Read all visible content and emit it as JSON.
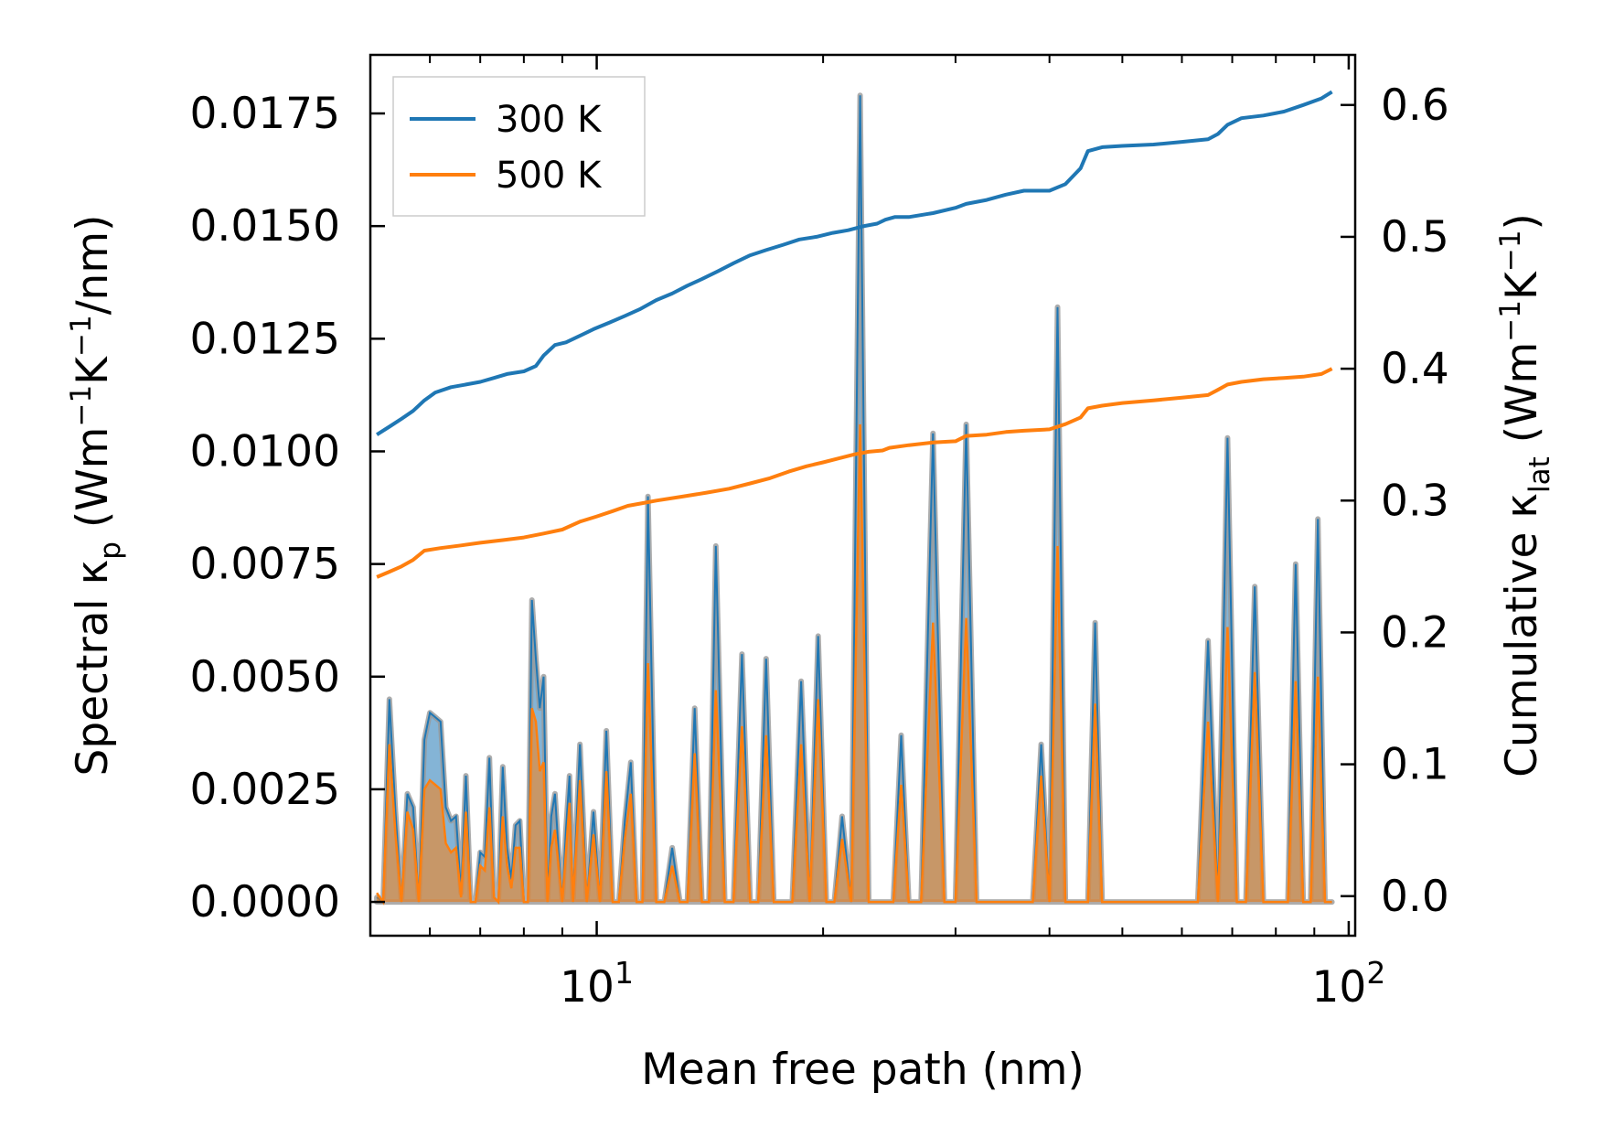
{
  "chart_data": {
    "type": "area",
    "x_scale": "log",
    "xlim": [
      5.0,
      102
    ],
    "ylim_left": [
      -0.00075,
      0.0188
    ],
    "ylim_right": [
      -0.03,
      0.638
    ],
    "xlabel": "Mean free path (nm)",
    "ylabel_left": {
      "main": "Spectral κ",
      "sub": "p",
      "unit_pre": " (Wm",
      "e1": "−1",
      "k": "K",
      "e2": "−1",
      "post": "/nm)"
    },
    "ylabel_right": {
      "main": "Cumulative κ",
      "sub": "lat",
      "unit_pre": " (Wm",
      "e1": "−1",
      "k": "K",
      "e2": "−1",
      "post": ")"
    },
    "x_ticks": [
      {
        "value": 10,
        "base": "10",
        "exp": "1"
      },
      {
        "value": 100,
        "base": "10",
        "exp": "2"
      }
    ],
    "y_ticks_left": [
      "0.0000",
      "0.0025",
      "0.0050",
      "0.0075",
      "0.0100",
      "0.0125",
      "0.0150",
      "0.0175"
    ],
    "y_ticks_right": [
      "0.0",
      "0.1",
      "0.2",
      "0.3",
      "0.4",
      "0.5",
      "0.6"
    ],
    "colors": {
      "s300": "#1f77b4",
      "s500": "#ff7f0e",
      "edge": "#999999"
    },
    "legend": {
      "placement": "top-left",
      "entries": [
        "300 K",
        "500 K"
      ]
    },
    "spectral": {
      "x": [
        5.1,
        5.2,
        5.3,
        5.4,
        5.5,
        5.6,
        5.7,
        5.8,
        5.9,
        6.0,
        6.1,
        6.2,
        6.3,
        6.4,
        6.5,
        6.6,
        6.7,
        6.8,
        6.9,
        7.0,
        7.1,
        7.2,
        7.3,
        7.4,
        7.5,
        7.6,
        7.7,
        7.8,
        7.9,
        8.0,
        8.1,
        8.2,
        8.3,
        8.4,
        8.5,
        8.6,
        8.7,
        8.8,
        8.9,
        9.0,
        9.1,
        9.2,
        9.3,
        9.5,
        9.7,
        9.9,
        10.1,
        10.3,
        10.5,
        10.7,
        10.9,
        11.1,
        11.3,
        11.5,
        11.7,
        12.0,
        12.3,
        12.6,
        12.9,
        13.2,
        13.5,
        13.8,
        14.1,
        14.4,
        14.8,
        15.2,
        15.6,
        16.0,
        16.4,
        16.8,
        17.2,
        17.7,
        18.2,
        18.7,
        19.2,
        19.7,
        20.2,
        20.7,
        21.2,
        21.8,
        22.4,
        23.0,
        23.6,
        24.2,
        24.8,
        25.4,
        26.0,
        27.0,
        28.0,
        29.0,
        30.0,
        31.0,
        32.0,
        33.0,
        34.0,
        35.0,
        36.0,
        37.0,
        38.0,
        39.0,
        40.0,
        41.0,
        42.0,
        43.0,
        44.0,
        45.0,
        46.0,
        47.0,
        48.0,
        49.0,
        50.0,
        51.0,
        53.0,
        55.0,
        57.0,
        59.0,
        61.0,
        63.0,
        65.0,
        67.0,
        69.0,
        71.0,
        73.0,
        75.0,
        77.0,
        79.0,
        81.0,
        83.0,
        85.0,
        87.0,
        89.0,
        91.0,
        93.0,
        95.0
      ],
      "k300": [
        0.0001,
        0.0,
        0.0045,
        0.002,
        0.0,
        0.0024,
        0.0021,
        0.0,
        0.0036,
        0.0042,
        0.0041,
        0.004,
        0.0021,
        0.0018,
        0.0019,
        0.0002,
        0.0028,
        0.0,
        0.0,
        0.0011,
        0.001,
        0.0032,
        0.0001,
        0.0,
        0.003,
        0.0012,
        0.0005,
        0.0017,
        0.0018,
        0.0,
        0.0,
        0.0067,
        0.0054,
        0.0043,
        0.005,
        0.0,
        0.0019,
        0.0024,
        0.0011,
        0.0,
        0.0016,
        0.0028,
        0.0,
        0.0035,
        0.0,
        0.002,
        0.0,
        0.0038,
        0.0,
        0.0,
        0.0018,
        0.0031,
        0.0,
        0.0,
        0.009,
        0.0,
        0.0,
        0.0012,
        0.0,
        0.0,
        0.0043,
        0.0,
        0.0,
        0.0079,
        0.0,
        0.0,
        0.0055,
        0.0,
        0.0,
        0.0054,
        0.0,
        0.0,
        0.0,
        0.0049,
        0.0,
        0.0059,
        0.0,
        0.0,
        0.0019,
        0.0,
        0.0179,
        0.0,
        0.0,
        0.0,
        0.0,
        0.0037,
        0.0,
        0.0,
        0.0104,
        0.0,
        0.0,
        0.0106,
        0.0,
        0.0,
        0.0,
        0.0,
        0.0,
        0.0,
        0.0,
        0.0035,
        0.0,
        0.0132,
        0.0,
        0.0,
        0.0,
        0.0,
        0.0062,
        0.0,
        0.0,
        0.0,
        0.0,
        0.0,
        0.0,
        0.0,
        0.0,
        0.0,
        0.0,
        0.0,
        0.0058,
        0.0,
        0.0103,
        0.0,
        0.0,
        0.007,
        0.0,
        0.0,
        0.0,
        0.0,
        0.0075,
        0.0,
        0.0,
        0.0085,
        0.0,
        0.0
      ],
      "k500": [
        0.0002,
        0.0,
        0.0035,
        0.0015,
        0.0,
        0.002,
        0.0016,
        0.0,
        0.0025,
        0.0027,
        0.0026,
        0.0025,
        0.0013,
        0.0011,
        0.0012,
        0.0001,
        0.002,
        0.0,
        0.0,
        0.0008,
        0.0007,
        0.0021,
        0.0001,
        0.0,
        0.0019,
        0.0008,
        0.0003,
        0.0012,
        0.0012,
        0.0,
        0.0,
        0.0043,
        0.004,
        0.0029,
        0.0031,
        0.0,
        0.0012,
        0.0016,
        0.0008,
        0.0,
        0.0011,
        0.0022,
        0.0,
        0.0027,
        0.0,
        0.0015,
        0.0,
        0.0029,
        0.0,
        0.0,
        0.0014,
        0.0024,
        0.0,
        0.0,
        0.0053,
        0.0,
        0.0,
        0.0008,
        0.0,
        0.0,
        0.0033,
        0.0,
        0.0,
        0.0047,
        0.0,
        0.0,
        0.0039,
        0.0,
        0.0,
        0.0037,
        0.0,
        0.0,
        0.0,
        0.0035,
        0.0,
        0.0045,
        0.0,
        0.0,
        0.0014,
        0.0,
        0.0106,
        0.0,
        0.0,
        0.0,
        0.0,
        0.0026,
        0.0,
        0.0,
        0.0062,
        0.0,
        0.0,
        0.0063,
        0.0,
        0.0,
        0.0,
        0.0,
        0.0,
        0.0,
        0.0,
        0.0028,
        0.0,
        0.0079,
        0.0,
        0.0,
        0.0,
        0.0,
        0.0044,
        0.0,
        0.0,
        0.0,
        0.0,
        0.0,
        0.0,
        0.0,
        0.0,
        0.0,
        0.0,
        0.0,
        0.004,
        0.0,
        0.0061,
        0.0,
        0.0,
        0.0051,
        0.0,
        0.0,
        0.0,
        0.0,
        0.0049,
        0.0,
        0.0,
        0.005,
        0.0,
        0.0
      ]
    },
    "cumulative": {
      "x300": [
        5.1,
        5.3,
        5.5,
        5.7,
        5.9,
        6.1,
        6.4,
        6.7,
        7.0,
        7.3,
        7.6,
        8.0,
        8.3,
        8.5,
        8.8,
        9.1,
        9.5,
        9.9,
        10.4,
        10.9,
        11.4,
        12.0,
        12.6,
        13.2,
        13.8,
        14.5,
        15.2,
        16.0,
        16.8,
        17.7,
        18.6,
        19.6,
        20.6,
        21.6,
        22.6,
        23.6,
        24.2,
        24.9,
        26.0,
        28.0,
        30.0,
        31.0,
        33.0,
        35.0,
        37.0,
        40.0,
        42.0,
        44.0,
        45.0,
        47.0,
        50.0,
        55.0,
        60.0,
        65.0,
        67.0,
        69.0,
        72.0,
        77.0,
        82.0,
        87.0,
        92.0,
        95.0
      ],
      "c300": [
        0.35,
        0.356,
        0.362,
        0.368,
        0.376,
        0.382,
        0.386,
        0.388,
        0.39,
        0.393,
        0.396,
        0.398,
        0.402,
        0.41,
        0.418,
        0.42,
        0.425,
        0.43,
        0.435,
        0.44,
        0.445,
        0.452,
        0.457,
        0.463,
        0.468,
        0.474,
        0.48,
        0.486,
        0.49,
        0.494,
        0.498,
        0.5,
        0.503,
        0.505,
        0.508,
        0.51,
        0.513,
        0.515,
        0.515,
        0.518,
        0.522,
        0.525,
        0.528,
        0.532,
        0.535,
        0.535,
        0.54,
        0.552,
        0.565,
        0.568,
        0.569,
        0.57,
        0.572,
        0.574,
        0.578,
        0.585,
        0.59,
        0.592,
        0.595,
        0.6,
        0.605,
        0.61
      ],
      "x500": [
        5.1,
        5.3,
        5.5,
        5.7,
        5.9,
        6.2,
        6.6,
        7.0,
        7.5,
        8.0,
        8.5,
        9.0,
        9.5,
        10.0,
        10.5,
        11.0,
        11.5,
        12.0,
        13.0,
        14.0,
        15.0,
        16.0,
        17.0,
        18.0,
        19.0,
        20.0,
        21.0,
        22.0,
        23.0,
        24.0,
        24.5,
        26.0,
        28.0,
        30.0,
        31.0,
        33.0,
        35.0,
        37.0,
        40.0,
        42.0,
        44.0,
        45.0,
        47.0,
        50.0,
        55.0,
        60.0,
        65.0,
        67.0,
        69.0,
        72.0,
        77.0,
        82.0,
        87.0,
        92.0,
        95.0
      ],
      "c500": [
        0.242,
        0.246,
        0.25,
        0.255,
        0.262,
        0.264,
        0.266,
        0.268,
        0.27,
        0.272,
        0.275,
        0.278,
        0.284,
        0.288,
        0.292,
        0.296,
        0.298,
        0.3,
        0.303,
        0.306,
        0.309,
        0.313,
        0.317,
        0.322,
        0.326,
        0.329,
        0.332,
        0.335,
        0.337,
        0.338,
        0.34,
        0.342,
        0.344,
        0.345,
        0.349,
        0.35,
        0.352,
        0.353,
        0.354,
        0.358,
        0.363,
        0.37,
        0.372,
        0.374,
        0.376,
        0.378,
        0.38,
        0.384,
        0.388,
        0.39,
        0.392,
        0.393,
        0.394,
        0.396,
        0.4
      ]
    }
  }
}
